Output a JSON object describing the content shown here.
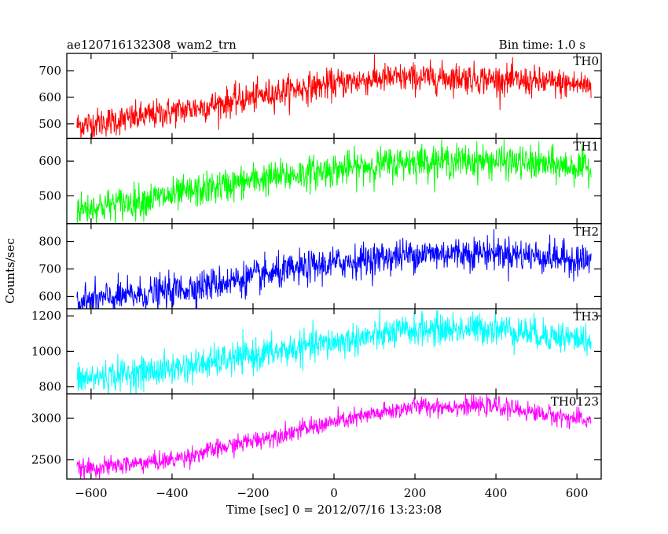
{
  "chart_data": {
    "type": "line",
    "title": "ae120716132308_wam2_trn",
    "subtitle": "Bin time: 1.0 s",
    "xlabel": "Time [sec] 0 = 2012/07/16 13:23:08",
    "ylabel": "Counts/sec",
    "xlim": [
      -660,
      660
    ],
    "xticks": [
      -600,
      -400,
      -200,
      0,
      200,
      400,
      600
    ],
    "x_range": [
      -635,
      635
    ],
    "x_step": 1,
    "grid": false,
    "panels": [
      {
        "name": "TH0",
        "color": "#ff0000",
        "ylim": [
          445,
          765
        ],
        "yticks": [
          500,
          600,
          700
        ],
        "trend": [
          [
            -635,
            495
          ],
          [
            -500,
            520
          ],
          [
            -300,
            570
          ],
          [
            -100,
            630
          ],
          [
            100,
            670
          ],
          [
            300,
            675
          ],
          [
            635,
            645
          ]
        ],
        "noise": 28
      },
      {
        "name": "TH1",
        "color": "#00ff00",
        "ylim": [
          420,
          665
        ],
        "yticks": [
          500,
          600
        ],
        "trend": [
          [
            -635,
            460
          ],
          [
            -400,
            500
          ],
          [
            -200,
            545
          ],
          [
            0,
            575
          ],
          [
            200,
            600
          ],
          [
            400,
            600
          ],
          [
            635,
            580
          ]
        ],
        "noise": 24
      },
      {
        "name": "TH2",
        "color": "#0000ff",
        "ylim": [
          555,
          865
        ],
        "yticks": [
          600,
          700,
          800
        ],
        "trend": [
          [
            -635,
            580
          ],
          [
            -400,
            620
          ],
          [
            -200,
            670
          ],
          [
            0,
            720
          ],
          [
            200,
            755
          ],
          [
            400,
            760
          ],
          [
            635,
            730
          ]
        ],
        "noise": 30
      },
      {
        "name": "TH3",
        "color": "#00ffff",
        "ylim": [
          760,
          1240
        ],
        "yticks": [
          800,
          1000,
          1200
        ],
        "trend": [
          [
            -635,
            840
          ],
          [
            -400,
            900
          ],
          [
            -200,
            975
          ],
          [
            0,
            1050
          ],
          [
            200,
            1120
          ],
          [
            400,
            1130
          ],
          [
            635,
            1060
          ]
        ],
        "noise": 45
      },
      {
        "name": "TH0123",
        "color": "#ff00ff",
        "ylim": [
          2270,
          3290
        ],
        "yticks": [
          2500,
          3000
        ],
        "trend": [
          [
            -635,
            2380
          ],
          [
            -400,
            2500
          ],
          [
            -200,
            2730
          ],
          [
            0,
            2950
          ],
          [
            200,
            3140
          ],
          [
            400,
            3140
          ],
          [
            635,
            2960
          ]
        ],
        "noise": 55
      }
    ]
  }
}
